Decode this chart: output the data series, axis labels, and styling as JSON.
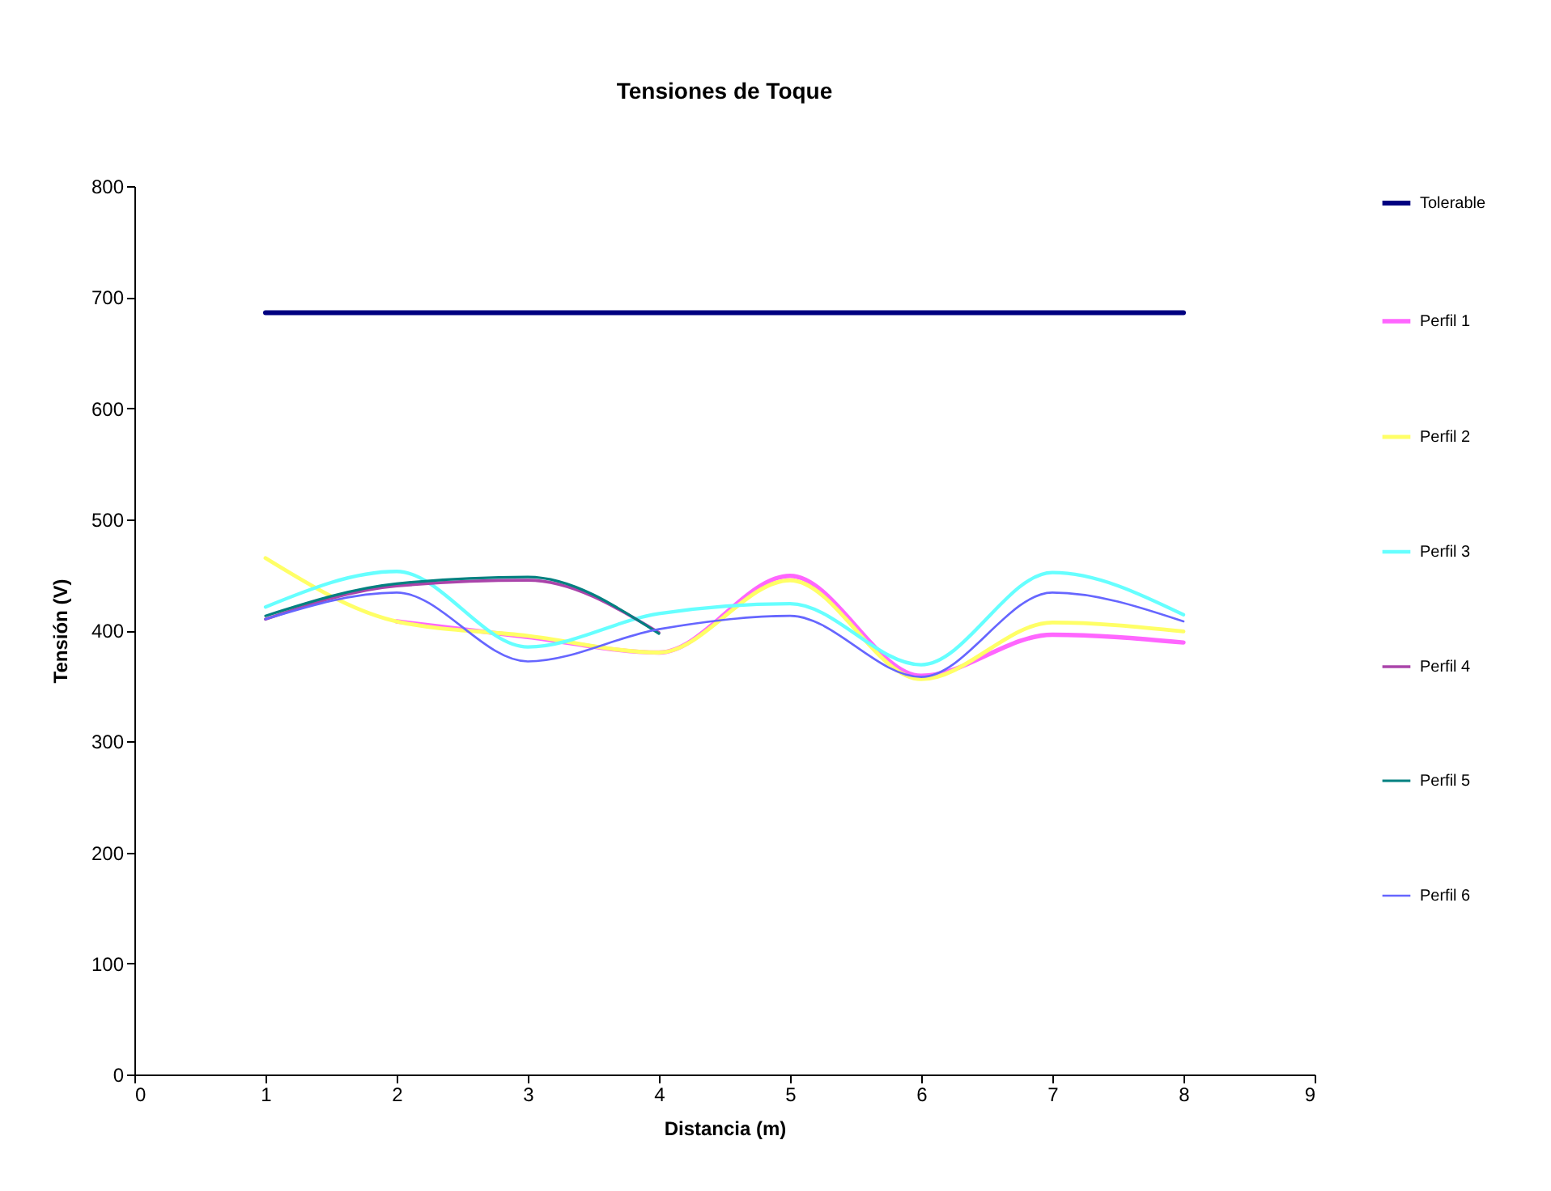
{
  "chart_data": {
    "type": "line",
    "title": "Tensiones de Toque",
    "xlabel": "Distancia (m)",
    "ylabel": "Tensión (V)",
    "x": [
      1,
      2,
      3,
      4,
      5,
      6,
      7,
      8
    ],
    "series": [
      {
        "name": "Tolerable",
        "color": "#000080",
        "values": [
          686,
          686,
          686,
          686,
          686,
          686,
          686,
          686
        ]
      },
      {
        "name": "Perfil 1",
        "color": "#ff66ff",
        "values": [
          null,
          408,
          394,
          380,
          449,
          359,
          396,
          389
        ]
      },
      {
        "name": "Perfil 2",
        "color": "#ffff66",
        "values": [
          465,
          408,
          395,
          380,
          445,
          356,
          407,
          399
        ]
      },
      {
        "name": "Perfil 3",
        "color": "#66ffff",
        "values": [
          421,
          453,
          385,
          415,
          424,
          369,
          452,
          414
        ]
      },
      {
        "name": "Perfil 4",
        "color": "#aa44aa",
        "values": [
          410,
          440,
          445,
          398,
          null,
          null,
          null,
          null
        ]
      },
      {
        "name": "Perfil 5",
        "color": "#008080",
        "values": [
          413,
          442,
          448,
          397,
          null,
          null,
          null,
          null
        ]
      },
      {
        "name": "Perfil 6",
        "color": "#6666ff",
        "values": [
          410,
          434,
          372,
          401,
          413,
          358,
          434,
          408
        ]
      }
    ],
    "xlim": [
      0,
      9
    ],
    "xticks": [
      0,
      1,
      2,
      3,
      4,
      5,
      6,
      7,
      8,
      9
    ],
    "ylim": [
      0,
      800
    ],
    "yticks": [
      0,
      100,
      200,
      300,
      400,
      500,
      600,
      700,
      800
    ],
    "grid": false,
    "legend": "right",
    "marker": "none",
    "line_style": "solid"
  }
}
